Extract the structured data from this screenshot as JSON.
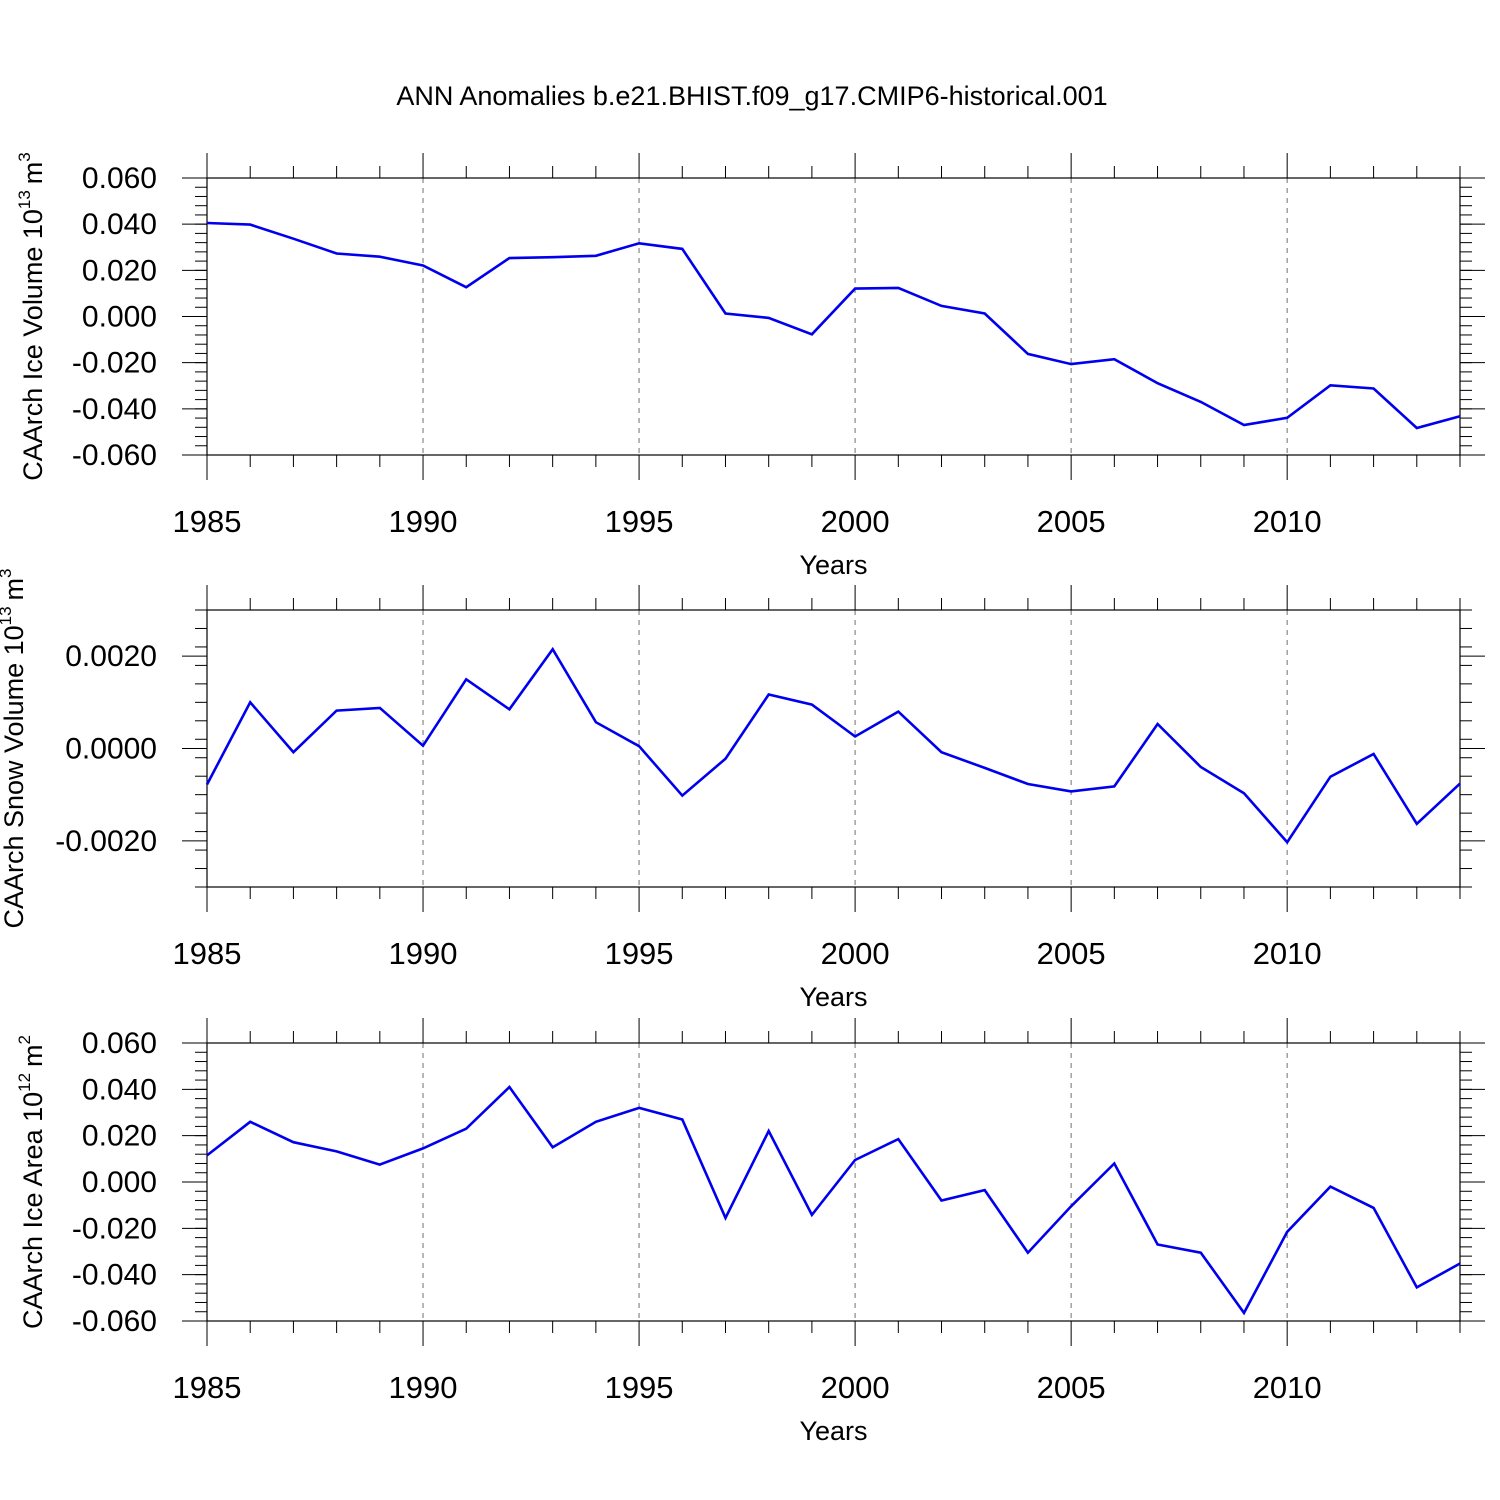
{
  "title": "ANN Anomalies b.e21.BHIST.f09_g17.CMIP6-historical.001",
  "colors": {
    "line": "#0000ee",
    "axis": "#000000",
    "grid": "#888888"
  },
  "chart_data": [
    {
      "type": "line",
      "ylabel": {
        "text": "CAArch Ice Volume 10",
        "exponent": "13",
        "unit": "m",
        "unit_exponent": "3"
      },
      "xlabel": "Years",
      "xlim": [
        1985,
        2014
      ],
      "ylim": [
        -0.06,
        0.06
      ],
      "x_ticks": [
        "1985",
        "1990",
        "1995",
        "2000",
        "2005",
        "2010"
      ],
      "y_ticks": [
        "0.060",
        "0.040",
        "0.020",
        "0.000",
        "-0.020",
        "-0.040",
        "-0.060"
      ],
      "grid": "vertical dashed at major x ticks",
      "x": [
        1985,
        1986,
        1987,
        1988,
        1989,
        1990,
        1991,
        1992,
        1993,
        1994,
        1995,
        1996,
        1997,
        1998,
        1999,
        2000,
        2001,
        2002,
        2003,
        2004,
        2005,
        2006,
        2007,
        2008,
        2009,
        2010,
        2011,
        2012,
        2013,
        2014
      ],
      "values": [
        0.0405,
        0.0398,
        0.0337,
        0.0273,
        0.0259,
        0.0221,
        0.0127,
        0.0253,
        0.0257,
        0.0263,
        0.0317,
        0.0293,
        0.0013,
        -0.0006,
        -0.0077,
        0.0121,
        0.0124,
        0.0046,
        0.0013,
        -0.0162,
        -0.0206,
        -0.0185,
        -0.0289,
        -0.037,
        -0.047,
        -0.0439,
        -0.0298,
        -0.0312,
        -0.0483,
        -0.0432
      ]
    },
    {
      "type": "line",
      "ylabel": {
        "text": "CAArch Snow Volume 10",
        "exponent": "13",
        "unit": "m",
        "unit_exponent": "3"
      },
      "xlabel": "Years",
      "xlim": [
        1985,
        2014
      ],
      "ylim": [
        -0.003,
        0.003
      ],
      "x_ticks": [
        "1985",
        "1990",
        "1995",
        "2000",
        "2005",
        "2010"
      ],
      "y_ticks": [
        "0.0020",
        "0.0000",
        "-0.0020"
      ],
      "grid": "vertical dashed at major x ticks",
      "x": [
        1985,
        1986,
        1987,
        1988,
        1989,
        1990,
        1991,
        1992,
        1993,
        1994,
        1995,
        1996,
        1997,
        1998,
        1999,
        2000,
        2001,
        2002,
        2003,
        2004,
        2005,
        2006,
        2007,
        2008,
        2009,
        2010,
        2011,
        2012,
        2013,
        2014
      ],
      "values": [
        -0.00078,
        0.001,
        -8e-05,
        0.00082,
        0.00088,
        6e-05,
        0.0015,
        0.00085,
        0.00215,
        0.00057,
        5e-05,
        -0.00102,
        -0.00022,
        0.00117,
        0.00095,
        0.00026,
        0.0008,
        -8e-05,
        -0.00042,
        -0.00077,
        -0.00093,
        -0.00082,
        0.00053,
        -0.0004,
        -0.00097,
        -0.00203,
        -0.00061,
        -0.00012,
        -0.00163,
        -0.00076
      ]
    },
    {
      "type": "line",
      "ylabel": {
        "text": "CAArch Ice Area 10",
        "exponent": "12",
        "unit": "m",
        "unit_exponent": "2"
      },
      "xlabel": "Years",
      "xlim": [
        1985,
        2014
      ],
      "ylim": [
        -0.06,
        0.06
      ],
      "x_ticks": [
        "1985",
        "1990",
        "1995",
        "2000",
        "2005",
        "2010"
      ],
      "y_ticks": [
        "0.060",
        "0.040",
        "0.020",
        "0.000",
        "-0.020",
        "-0.040",
        "-0.060"
      ],
      "grid": "vertical dashed at major x ticks",
      "x": [
        1985,
        1986,
        1987,
        1988,
        1989,
        1990,
        1991,
        1992,
        1993,
        1994,
        1995,
        1996,
        1997,
        1998,
        1999,
        2000,
        2001,
        2002,
        2003,
        2004,
        2005,
        2006,
        2007,
        2008,
        2009,
        2010,
        2011,
        2012,
        2013,
        2014
      ],
      "values": [
        0.0115,
        0.026,
        0.0172,
        0.0132,
        0.0075,
        0.0145,
        0.023,
        0.041,
        0.015,
        0.026,
        0.032,
        0.027,
        -0.0155,
        0.022,
        -0.0142,
        0.0095,
        0.0185,
        -0.008,
        -0.0035,
        -0.0305,
        -0.0105,
        0.008,
        -0.027,
        -0.0305,
        -0.0565,
        -0.0215,
        -0.002,
        -0.0112,
        -0.0455,
        -0.0352
      ]
    }
  ]
}
